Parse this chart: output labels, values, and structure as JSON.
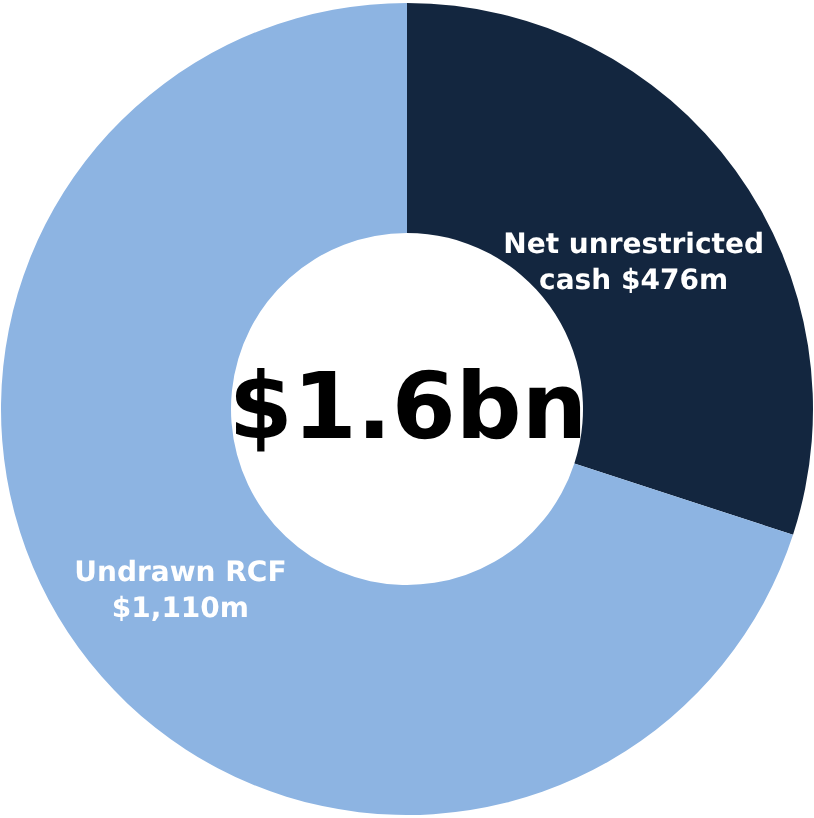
{
  "chart_data": {
    "type": "donut",
    "categories": [
      "Net unrestricted cash",
      "Undrawn RCF"
    ],
    "values": [
      476,
      1110
    ],
    "value_labels": [
      "$476m",
      "$1,110m"
    ],
    "colors": [
      "#13263f",
      "#8db4e2"
    ],
    "annotations": [
      "$1.6bn"
    ]
  }
}
